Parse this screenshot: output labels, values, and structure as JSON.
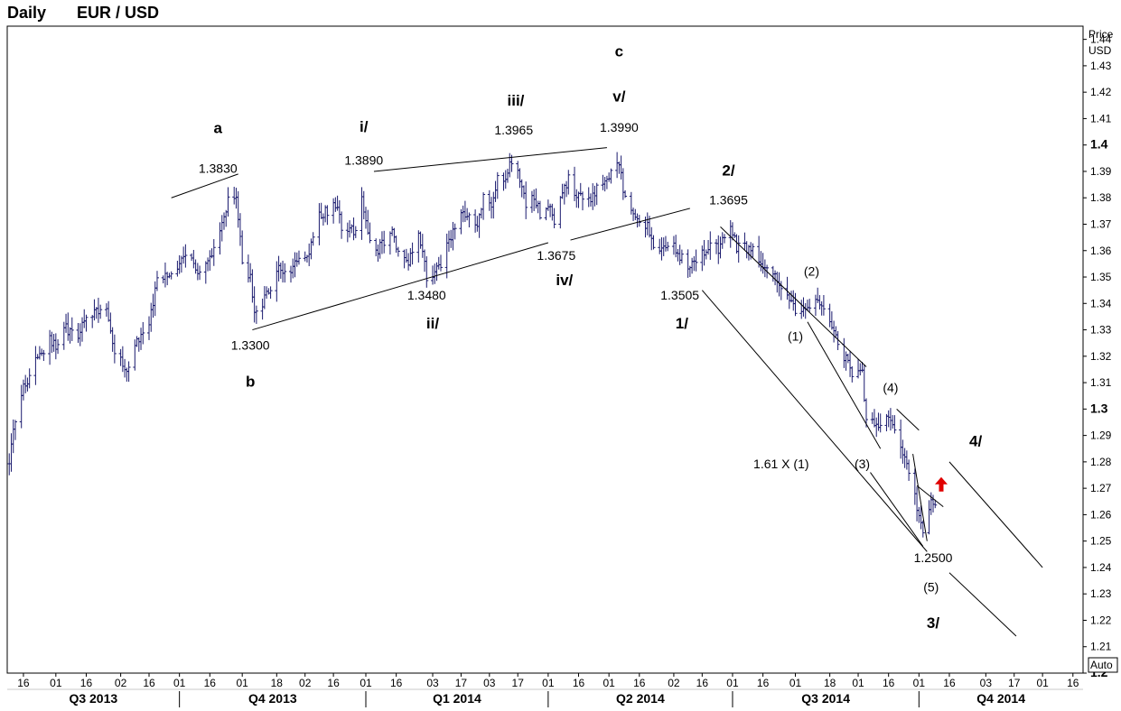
{
  "header": {
    "period": "Daily",
    "symbol": "EUR / USD"
  },
  "colors": {
    "bars": "#1a1a6e",
    "lines": "#000000",
    "arrow": "#e00000",
    "frame": "#000000",
    "background": "#ffffff"
  },
  "chart_data": {
    "type": "ohlc",
    "title": "EUR / USD",
    "interval": "Daily",
    "y_axis": {
      "title_lines": [
        "Price",
        "USD"
      ],
      "range": [
        1.2,
        1.445
      ],
      "ticks": [
        {
          "value": 1.44,
          "label": "1.44",
          "bold": false
        },
        {
          "value": 1.43,
          "label": "1.43",
          "bold": false
        },
        {
          "value": 1.42,
          "label": "1.42",
          "bold": false
        },
        {
          "value": 1.41,
          "label": "1.41",
          "bold": false
        },
        {
          "value": 1.4,
          "label": "1.4",
          "bold": true
        },
        {
          "value": 1.39,
          "label": "1.39",
          "bold": false
        },
        {
          "value": 1.38,
          "label": "1.38",
          "bold": false
        },
        {
          "value": 1.37,
          "label": "1.37",
          "bold": false
        },
        {
          "value": 1.36,
          "label": "1.36",
          "bold": false
        },
        {
          "value": 1.35,
          "label": "1.35",
          "bold": false
        },
        {
          "value": 1.34,
          "label": "1.34",
          "bold": false
        },
        {
          "value": 1.33,
          "label": "1.33",
          "bold": false
        },
        {
          "value": 1.32,
          "label": "1.32",
          "bold": false
        },
        {
          "value": 1.31,
          "label": "1.31",
          "bold": false
        },
        {
          "value": 1.3,
          "label": "1.3",
          "bold": true
        },
        {
          "value": 1.29,
          "label": "1.29",
          "bold": false
        },
        {
          "value": 1.28,
          "label": "1.28",
          "bold": false
        },
        {
          "value": 1.27,
          "label": "1.27",
          "bold": false
        },
        {
          "value": 1.26,
          "label": "1.26",
          "bold": false
        },
        {
          "value": 1.25,
          "label": "1.25",
          "bold": false
        },
        {
          "value": 1.24,
          "label": "1.24",
          "bold": false
        },
        {
          "value": 1.23,
          "label": "1.23",
          "bold": false
        },
        {
          "value": 1.22,
          "label": "1.22",
          "bold": false
        },
        {
          "value": 1.21,
          "label": "1.21",
          "bold": false
        },
        {
          "value": 1.2,
          "label": "1.2",
          "bold": true
        }
      ],
      "scale_button": "Auto"
    },
    "x_axis": {
      "start": "2013-07-08",
      "end": "2014-12-21",
      "day_ticks": [
        {
          "date": "2013-07-16",
          "label": "16"
        },
        {
          "date": "2013-08-01",
          "label": "01"
        },
        {
          "date": "2013-08-16",
          "label": "16"
        },
        {
          "date": "2013-09-02",
          "label": "02"
        },
        {
          "date": "2013-09-16",
          "label": "16"
        },
        {
          "date": "2013-10-01",
          "label": "01"
        },
        {
          "date": "2013-10-16",
          "label": "16"
        },
        {
          "date": "2013-11-01",
          "label": "01"
        },
        {
          "date": "2013-11-18",
          "label": "18"
        },
        {
          "date": "2013-12-02",
          "label": "02"
        },
        {
          "date": "2013-12-16",
          "label": "16"
        },
        {
          "date": "2014-01-01",
          "label": "01"
        },
        {
          "date": "2014-01-16",
          "label": "16"
        },
        {
          "date": "2014-02-03",
          "label": "03"
        },
        {
          "date": "2014-02-17",
          "label": "17"
        },
        {
          "date": "2014-03-03",
          "label": "03"
        },
        {
          "date": "2014-03-17",
          "label": "17"
        },
        {
          "date": "2014-04-01",
          "label": "01"
        },
        {
          "date": "2014-04-16",
          "label": "16"
        },
        {
          "date": "2014-05-01",
          "label": "01"
        },
        {
          "date": "2014-05-16",
          "label": "16"
        },
        {
          "date": "2014-06-02",
          "label": "02"
        },
        {
          "date": "2014-06-16",
          "label": "16"
        },
        {
          "date": "2014-07-01",
          "label": "01"
        },
        {
          "date": "2014-07-16",
          "label": "16"
        },
        {
          "date": "2014-08-01",
          "label": "01"
        },
        {
          "date": "2014-08-18",
          "label": "18"
        },
        {
          "date": "2014-09-01",
          "label": "01"
        },
        {
          "date": "2014-09-16",
          "label": "16"
        },
        {
          "date": "2014-10-01",
          "label": "01"
        },
        {
          "date": "2014-10-16",
          "label": "16"
        },
        {
          "date": "2014-11-03",
          "label": "03"
        },
        {
          "date": "2014-11-17",
          "label": "17"
        },
        {
          "date": "2014-12-01",
          "label": "01"
        },
        {
          "date": "2014-12-16",
          "label": "16"
        }
      ],
      "quarters": [
        {
          "label": "Q3 2013",
          "start": "2013-07-01",
          "end": "2013-10-01"
        },
        {
          "label": "Q4 2013",
          "start": "2013-10-01",
          "end": "2014-01-01"
        },
        {
          "label": "Q1 2014",
          "start": "2014-01-01",
          "end": "2014-04-01"
        },
        {
          "label": "Q2 2014",
          "start": "2014-04-01",
          "end": "2014-07-01"
        },
        {
          "label": "Q3 2014",
          "start": "2014-07-01",
          "end": "2014-10-01"
        },
        {
          "label": "Q4 2014",
          "start": "2014-10-01",
          "end": "2015-01-01"
        }
      ]
    },
    "price_path": [
      [
        "2013-07-09",
        1.281
      ],
      [
        "2013-07-12",
        1.296
      ],
      [
        "2013-07-16",
        1.308
      ],
      [
        "2013-07-22",
        1.318
      ],
      [
        "2013-07-29",
        1.326
      ],
      [
        "2013-08-02",
        1.324
      ],
      [
        "2013-08-06",
        1.331
      ],
      [
        "2013-08-12",
        1.326
      ],
      [
        "2013-08-16",
        1.336
      ],
      [
        "2013-08-21",
        1.337
      ],
      [
        "2013-08-26",
        1.339
      ],
      [
        "2013-08-30",
        1.322
      ],
      [
        "2013-09-05",
        1.314
      ],
      [
        "2013-09-10",
        1.326
      ],
      [
        "2013-09-16",
        1.332
      ],
      [
        "2013-09-20",
        1.349
      ],
      [
        "2013-09-24",
        1.351
      ],
      [
        "2013-09-30",
        1.353
      ],
      [
        "2013-10-03",
        1.358
      ],
      [
        "2013-10-07",
        1.356
      ],
      [
        "2013-10-10",
        1.353
      ],
      [
        "2013-10-16",
        1.357
      ],
      [
        "2013-10-21",
        1.368
      ],
      [
        "2013-10-25",
        1.379
      ],
      [
        "2013-10-29",
        1.381
      ],
      [
        "2013-11-01",
        1.355
      ],
      [
        "2013-11-05",
        1.35
      ],
      [
        "2013-11-07",
        1.335
      ],
      [
        "2013-11-11",
        1.34
      ],
      [
        "2013-11-14",
        1.345
      ],
      [
        "2013-11-19",
        1.353
      ],
      [
        "2013-11-25",
        1.352
      ],
      [
        "2013-11-29",
        1.359
      ],
      [
        "2013-12-04",
        1.359
      ],
      [
        "2013-12-09",
        1.374
      ],
      [
        "2013-12-13",
        1.375
      ],
      [
        "2013-12-18",
        1.378
      ],
      [
        "2013-12-20",
        1.367
      ],
      [
        "2013-12-27",
        1.368
      ],
      [
        "2013-12-30",
        1.379
      ],
      [
        "2014-01-02",
        1.367
      ],
      [
        "2014-01-07",
        1.36
      ],
      [
        "2014-01-10",
        1.364
      ],
      [
        "2014-01-14",
        1.366
      ],
      [
        "2014-01-16",
        1.361
      ],
      [
        "2014-01-22",
        1.356
      ],
      [
        "2014-01-27",
        1.368
      ],
      [
        "2014-01-31",
        1.35
      ],
      [
        "2014-02-04",
        1.351
      ],
      [
        "2014-02-07",
        1.355
      ],
      [
        "2014-02-11",
        1.364
      ],
      [
        "2014-02-14",
        1.369
      ],
      [
        "2014-02-18",
        1.374
      ],
      [
        "2014-02-21",
        1.374
      ],
      [
        "2014-02-25",
        1.37
      ],
      [
        "2014-02-28",
        1.381
      ],
      [
        "2014-03-04",
        1.376
      ],
      [
        "2014-03-07",
        1.388
      ],
      [
        "2014-03-11",
        1.387
      ],
      [
        "2014-03-13",
        1.392
      ],
      [
        "2014-03-17",
        1.39
      ],
      [
        "2014-03-21",
        1.378
      ],
      [
        "2014-03-25",
        1.38
      ],
      [
        "2014-03-28",
        1.374
      ],
      [
        "2014-04-01",
        1.378
      ],
      [
        "2014-04-04",
        1.37
      ],
      [
        "2014-04-08",
        1.381
      ],
      [
        "2014-04-11",
        1.388
      ],
      [
        "2014-04-15",
        1.381
      ],
      [
        "2014-04-18",
        1.381
      ],
      [
        "2014-04-22",
        1.38
      ],
      [
        "2014-04-25",
        1.384
      ],
      [
        "2014-04-30",
        1.387
      ],
      [
        "2014-05-06",
        1.393
      ],
      [
        "2014-05-08",
        1.384
      ],
      [
        "2014-05-13",
        1.372
      ],
      [
        "2014-05-16",
        1.37
      ],
      [
        "2014-05-20",
        1.37
      ],
      [
        "2014-05-23",
        1.363
      ],
      [
        "2014-05-28",
        1.36
      ],
      [
        "2014-06-02",
        1.361
      ],
      [
        "2014-06-05",
        1.358
      ],
      [
        "2014-06-10",
        1.354
      ],
      [
        "2014-06-13",
        1.356
      ],
      [
        "2014-06-18",
        1.361
      ],
      [
        "2014-06-24",
        1.361
      ],
      [
        "2014-06-30",
        1.369
      ],
      [
        "2014-07-03",
        1.361
      ],
      [
        "2014-07-08",
        1.361
      ],
      [
        "2014-07-11",
        1.36
      ],
      [
        "2014-07-16",
        1.354
      ],
      [
        "2014-07-21",
        1.352
      ],
      [
        "2014-07-24",
        1.345
      ],
      [
        "2014-07-29",
        1.342
      ],
      [
        "2014-08-01",
        1.338
      ],
      [
        "2014-08-06",
        1.339
      ],
      [
        "2014-08-11",
        1.341
      ],
      [
        "2014-08-15",
        1.339
      ],
      [
        "2014-08-20",
        1.329
      ],
      [
        "2014-08-25",
        1.32
      ],
      [
        "2014-08-29",
        1.314
      ],
      [
        "2014-09-03",
        1.313
      ],
      [
        "2014-09-05",
        1.295
      ],
      [
        "2014-09-10",
        1.294
      ],
      [
        "2014-09-15",
        1.296
      ],
      [
        "2014-09-18",
        1.293
      ],
      [
        "2014-09-22",
        1.285
      ],
      [
        "2014-09-26",
        1.275
      ],
      [
        "2014-09-30",
        1.263
      ],
      [
        "2014-10-03",
        1.252
      ],
      [
        "2014-10-07",
        1.266
      ],
      [
        "2014-10-09",
        1.265
      ]
    ],
    "trendlines": [
      {
        "from": [
          "2013-09-27",
          1.38
        ],
        "to": [
          "2013-10-30",
          1.389
        ]
      },
      {
        "from": [
          "2013-11-06",
          1.33
        ],
        "to": [
          "2014-04-01",
          1.363
        ]
      },
      {
        "from": [
          "2014-01-05",
          1.39
        ],
        "to": [
          "2014-04-30",
          1.399
        ]
      },
      {
        "from": [
          "2014-04-12",
          1.364
        ],
        "to": [
          "2014-06-10",
          1.376
        ]
      },
      {
        "from": [
          "2014-06-25",
          1.369
        ],
        "to": [
          "2014-09-05",
          1.316
        ]
      },
      {
        "from": [
          "2014-06-16",
          1.345
        ],
        "to": [
          "2014-10-05",
          1.246
        ]
      },
      {
        "from": [
          "2014-08-07",
          1.333
        ],
        "to": [
          "2014-09-12",
          1.285
        ]
      },
      {
        "from": [
          "2014-09-07",
          1.276
        ],
        "to": [
          "2014-10-03",
          1.248
        ]
      },
      {
        "from": [
          "2014-09-20",
          1.3
        ],
        "to": [
          "2014-10-01",
          1.292
        ]
      },
      {
        "from": [
          "2014-09-28",
          1.283
        ],
        "to": [
          "2014-10-05",
          1.25
        ]
      },
      {
        "from": [
          "2014-09-30",
          1.271
        ],
        "to": [
          "2014-10-13",
          1.263
        ]
      },
      {
        "from": [
          "2014-10-16",
          1.28
        ],
        "to": [
          "2014-12-01",
          1.24
        ]
      },
      {
        "from": [
          "2014-10-16",
          1.238
        ],
        "to": [
          "2014-11-18",
          1.214
        ]
      }
    ],
    "annotations": [
      {
        "text": "a",
        "date": "2013-10-20",
        "price": 1.4045,
        "bold": true,
        "size": 17
      },
      {
        "text": "1.3830",
        "date": "2013-10-20",
        "price": 1.3895,
        "bold": false,
        "size": 14
      },
      {
        "text": "b",
        "date": "2013-11-05",
        "price": 1.3085,
        "bold": true,
        "size": 17
      },
      {
        "text": "1.3300",
        "date": "2013-11-05",
        "price": 1.3225,
        "bold": false,
        "size": 14
      },
      {
        "text": "i/",
        "date": "2013-12-31",
        "price": 1.405,
        "bold": true,
        "size": 17
      },
      {
        "text": "1.3890",
        "date": "2013-12-31",
        "price": 1.3925,
        "bold": false,
        "size": 14
      },
      {
        "text": "ii/",
        "date": "2014-02-03",
        "price": 1.3305,
        "bold": true,
        "size": 17
      },
      {
        "text": "1.3480",
        "date": "2014-01-31",
        "price": 1.3415,
        "bold": false,
        "size": 14
      },
      {
        "text": "iii/",
        "date": "2014-03-16",
        "price": 1.415,
        "bold": true,
        "size": 17
      },
      {
        "text": "1.3965",
        "date": "2014-03-15",
        "price": 1.404,
        "bold": false,
        "size": 14
      },
      {
        "text": "iv/",
        "date": "2014-04-09",
        "price": 1.347,
        "bold": true,
        "size": 17
      },
      {
        "text": "1.3675",
        "date": "2014-04-05",
        "price": 1.3565,
        "bold": false,
        "size": 14
      },
      {
        "text": "c",
        "date": "2014-05-06",
        "price": 1.4335,
        "bold": true,
        "size": 17
      },
      {
        "text": "v/",
        "date": "2014-05-06",
        "price": 1.4165,
        "bold": true,
        "size": 17
      },
      {
        "text": "1.3990",
        "date": "2014-05-06",
        "price": 1.405,
        "bold": false,
        "size": 14
      },
      {
        "text": "1/",
        "date": "2014-06-06",
        "price": 1.3305,
        "bold": true,
        "size": 17
      },
      {
        "text": "1.3505",
        "date": "2014-06-05",
        "price": 1.3415,
        "bold": false,
        "size": 14
      },
      {
        "text": "2/",
        "date": "2014-06-29",
        "price": 1.3885,
        "bold": true,
        "size": 17
      },
      {
        "text": "1.3695",
        "date": "2014-06-29",
        "price": 1.3775,
        "bold": false,
        "size": 14
      },
      {
        "text": "(2)",
        "date": "2014-08-09",
        "price": 1.3505,
        "bold": false,
        "size": 14
      },
      {
        "text": "(1)",
        "date": "2014-08-01",
        "price": 1.326,
        "bold": false,
        "size": 14
      },
      {
        "text": "(4)",
        "date": "2014-09-17",
        "price": 1.3065,
        "bold": false,
        "size": 14
      },
      {
        "text": "(3)",
        "date": "2014-09-03",
        "price": 1.2775,
        "bold": false,
        "size": 14
      },
      {
        "text": "1.61  X  (1)",
        "date": "2014-07-25",
        "price": 1.2775,
        "bold": false,
        "size": 14
      },
      {
        "text": "1.2500",
        "date": "2014-10-08",
        "price": 1.242,
        "bold": false,
        "size": 14
      },
      {
        "text": "(5)",
        "date": "2014-10-07",
        "price": 1.231,
        "bold": false,
        "size": 14
      },
      {
        "text": "3/",
        "date": "2014-10-08",
        "price": 1.217,
        "bold": true,
        "size": 17
      },
      {
        "text": "4/",
        "date": "2014-10-29",
        "price": 1.286,
        "bold": true,
        "size": 17
      }
    ],
    "signal": {
      "type": "up-arrow",
      "date": "2014-10-12",
      "price": 1.2715
    }
  }
}
